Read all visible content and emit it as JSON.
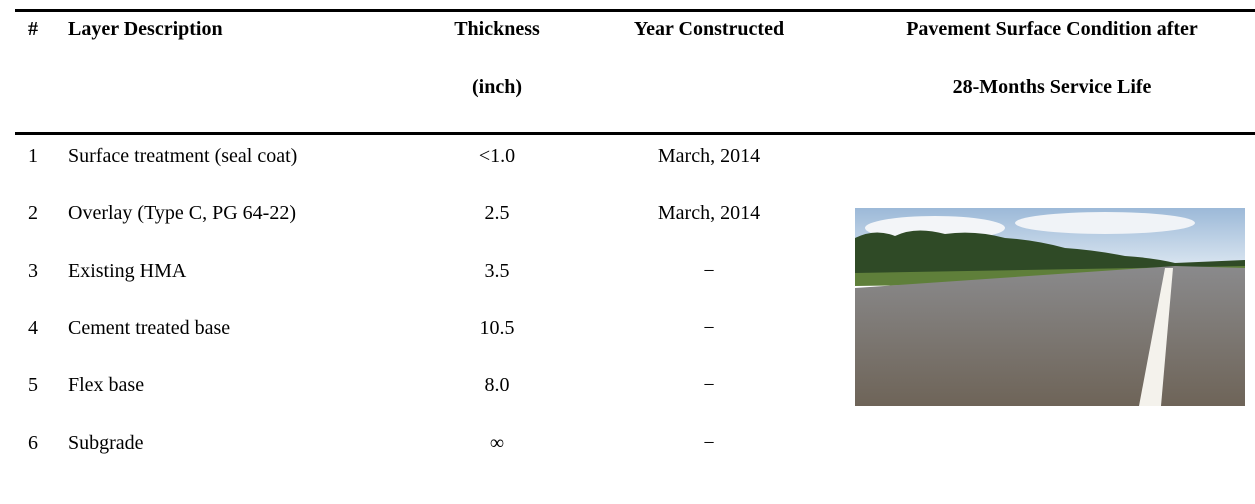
{
  "table": {
    "columns": [
      [
        "#"
      ],
      [
        "Layer Description"
      ],
      [
        "Thickness",
        "(inch)"
      ],
      [
        "Year Constructed"
      ],
      [
        "Pavement Surface Condition after",
        "28-Months Service Life"
      ]
    ],
    "rows": [
      [
        "1",
        "Surface treatment (seal coat)",
        "<1.0",
        "March, 2014"
      ],
      [
        "2",
        "Overlay (Type C, PG 64-22)",
        "2.5",
        "March, 2014"
      ],
      [
        "3",
        "Existing HMA",
        "3.5",
        "−"
      ],
      [
        "4",
        "Cement treated base",
        "10.5",
        "−"
      ],
      [
        "5",
        "Flex base",
        "8.0",
        "−"
      ],
      [
        "6",
        "Subgrade",
        "∞",
        "−"
      ]
    ]
  }
}
